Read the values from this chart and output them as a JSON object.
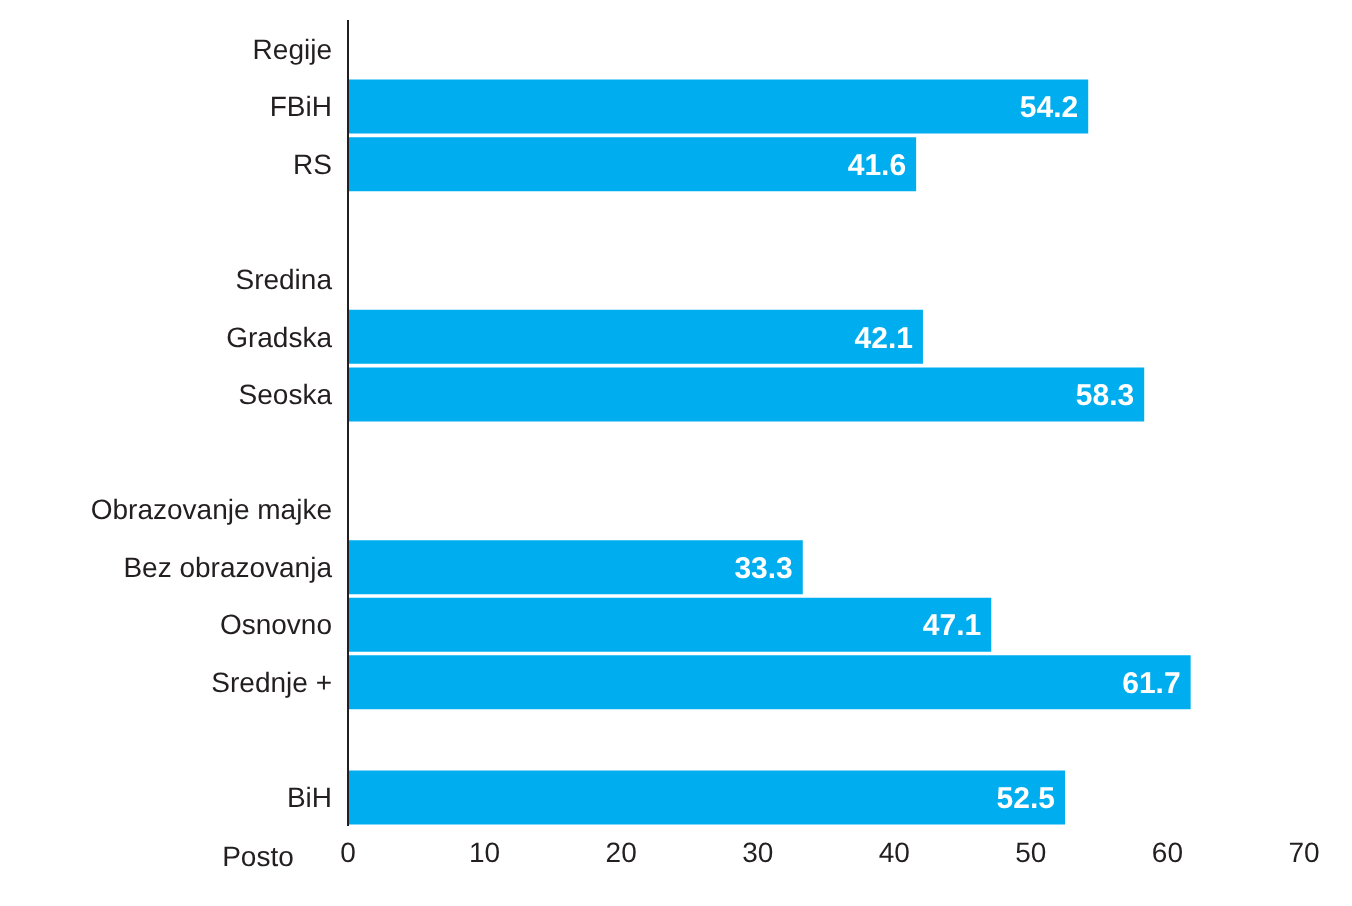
{
  "chart_data": {
    "type": "bar",
    "orientation": "horizontal",
    "xlabel": "Posto",
    "categories": [
      "Regije",
      "FBiH",
      "RS",
      null,
      "Sredina",
      "Gradska",
      "Seoska",
      null,
      "Obrazovanje majke",
      "Bez obrazovanja",
      "Osnovno",
      "Srednje +",
      null,
      "BiH"
    ],
    "values": [
      null,
      54.2,
      41.6,
      null,
      null,
      42.1,
      58.3,
      null,
      null,
      33.3,
      47.1,
      61.7,
      null,
      52.5
    ],
    "color": "#00aeef",
    "xlim": [
      0,
      70
    ],
    "xticks": [
      0,
      10,
      20,
      30,
      40,
      50,
      60,
      70
    ],
    "data_labels": true,
    "grid": false,
    "legend": false
  }
}
